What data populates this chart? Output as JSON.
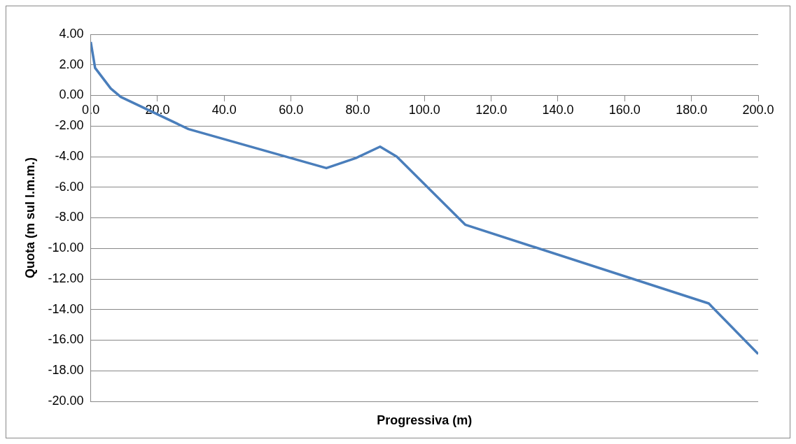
{
  "chart_data": {
    "type": "line",
    "xlabel": "Progressiva (m)",
    "ylabel": "Quota (m sul l.m.m.)",
    "x": [
      0,
      1.3,
      6,
      9,
      29.3,
      70.6,
      79.4,
      86.7,
      91.7,
      112.2,
      185.2,
      200
    ],
    "series": [
      {
        "color": "#4a7ebb",
        "values": [
          3.5,
          1.8,
          0.45,
          -0.1,
          -2.2,
          -4.75,
          -4.1,
          -3.35,
          -4.0,
          -8.45,
          -13.6,
          -16.9
        ]
      }
    ],
    "xlim": [
      0,
      200
    ],
    "xticks": [
      {
        "value": 0,
        "label": "0.0"
      },
      {
        "value": 20,
        "label": "20.0"
      },
      {
        "value": 40,
        "label": "40.0"
      },
      {
        "value": 60,
        "label": "60.0"
      },
      {
        "value": 80,
        "label": "80.0"
      },
      {
        "value": 100,
        "label": "100.0"
      },
      {
        "value": 120,
        "label": "120.0"
      },
      {
        "value": 140,
        "label": "140.0"
      },
      {
        "value": 160,
        "label": "160.0"
      },
      {
        "value": 180,
        "label": "180.0"
      },
      {
        "value": 200,
        "label": "200.0"
      }
    ],
    "ylim": [
      -20,
      4
    ],
    "yticks": [
      {
        "value": -20,
        "label": "-20.00"
      },
      {
        "value": -18,
        "label": "-18.00"
      },
      {
        "value": -16,
        "label": "-16.00"
      },
      {
        "value": -14,
        "label": "-14.00"
      },
      {
        "value": -12,
        "label": "-12.00"
      },
      {
        "value": -10,
        "label": "-10.00"
      },
      {
        "value": -8,
        "label": "-8.00"
      },
      {
        "value": -6,
        "label": "-6.00"
      },
      {
        "value": -4,
        "label": "-4.00"
      },
      {
        "value": -2,
        "label": "-2.00"
      },
      {
        "value": 0,
        "label": "0.00"
      },
      {
        "value": 2,
        "label": "2.00"
      },
      {
        "value": 4,
        "label": "4.00"
      }
    ],
    "grid": "y",
    "legend": false,
    "marker": "none",
    "line_style": "solid"
  }
}
